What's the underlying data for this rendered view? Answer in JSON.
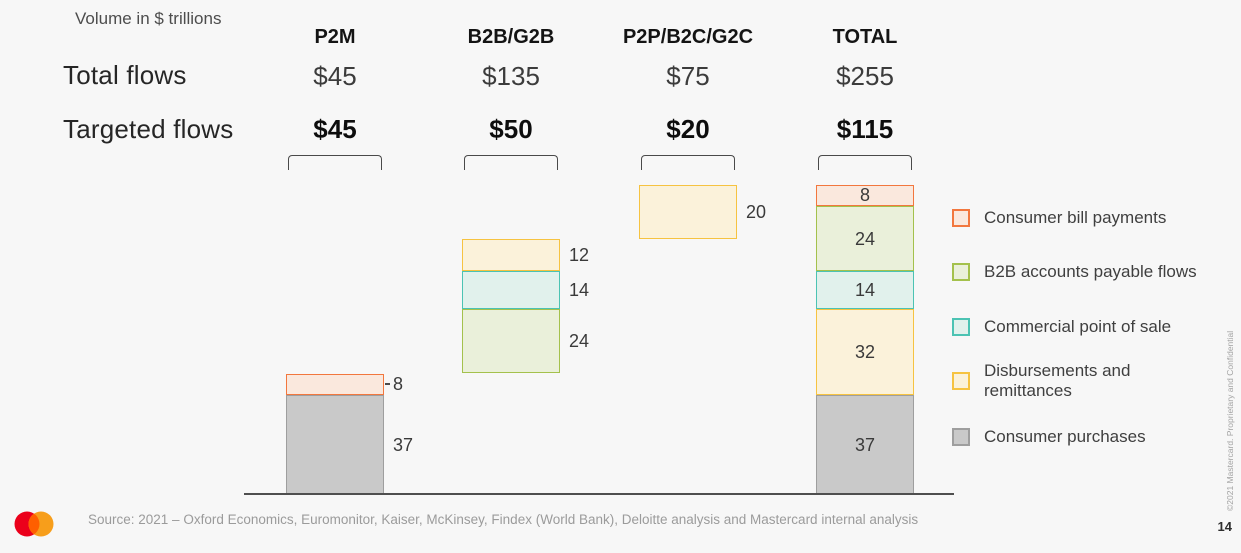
{
  "header": {
    "units_label": "Volume in $ trillions",
    "row_label_total": "Total flows",
    "row_label_targeted": "Targeted flows"
  },
  "chart_data": {
    "type": "bar",
    "stacked": true,
    "layout_hint": "cumulative floating stacked bars, baseline axis, no gridlines, legend right",
    "unit": "$ trillions",
    "ylim": [
      0,
      115
    ],
    "categories": [
      "P2M",
      "B2B/G2B",
      "P2P/B2C/G2C",
      "TOTAL"
    ],
    "total_flows": [
      "$45",
      "$135",
      "$75",
      "$255"
    ],
    "targeted_flows": [
      "$45",
      "$50",
      "$20",
      "$115"
    ],
    "series_palette": {
      "consumer_bill_payments": {
        "label": "Consumer bill payments",
        "border": "#f2773e",
        "fill": "#fae8dd"
      },
      "b2b_accounts_payable": {
        "label": "B2B accounts payable flows",
        "border": "#a4c14c",
        "fill": "#eaf0da"
      },
      "commercial_pos": {
        "label": "Commercial point of sale",
        "border": "#4cc3b3",
        "fill": "#e1f1ec"
      },
      "disbursements_remittances": {
        "label": "Disbursements and remittances",
        "border": "#f6c341",
        "fill": "#fbf2da"
      },
      "consumer_purchases": {
        "label": "Consumer purchases",
        "border": "#9e9e9e",
        "fill": "#c9c9c9"
      }
    },
    "bars": [
      {
        "category": "P2M",
        "start": 0,
        "label_side": "right",
        "segments": [
          {
            "key": "consumer_purchases",
            "value": 37
          },
          {
            "key": "consumer_bill_payments",
            "value": 8,
            "leader_tick": true
          }
        ]
      },
      {
        "category": "B2B/G2B",
        "start": 45,
        "label_side": "right",
        "segments": [
          {
            "key": "b2b_accounts_payable",
            "value": 24
          },
          {
            "key": "commercial_pos",
            "value": 14
          },
          {
            "key": "disbursements_remittances",
            "value": 12
          }
        ]
      },
      {
        "category": "P2P/B2C/G2C",
        "start": 95,
        "label_side": "right",
        "segments": [
          {
            "key": "disbursements_remittances",
            "value": 20
          }
        ]
      },
      {
        "category": "TOTAL",
        "start": 0,
        "label_side": "inside",
        "segments": [
          {
            "key": "consumer_purchases",
            "value": 37
          },
          {
            "key": "disbursements_remittances",
            "value": 32
          },
          {
            "key": "commercial_pos",
            "value": 14
          },
          {
            "key": "b2b_accounts_payable",
            "value": 24
          },
          {
            "key": "consumer_bill_payments",
            "value": 8
          }
        ]
      }
    ]
  },
  "legend": {
    "items": [
      {
        "key": "consumer_bill_payments",
        "label": "Consumer bill payments"
      },
      {
        "key": "b2b_accounts_payable",
        "label": "B2B accounts payable flows"
      },
      {
        "key": "commercial_pos",
        "label": "Commercial point of sale"
      },
      {
        "key": "disbursements_remittances",
        "label": "Disbursements and\nremittances"
      },
      {
        "key": "consumer_purchases",
        "label": "Consumer purchases"
      }
    ]
  },
  "footer": {
    "source": "Source: 2021 – Oxford Economics, Euromonitor, Kaiser, McKinsey, Findex (World Bank), Deloitte analysis and Mastercard internal analysis",
    "page_number": "14",
    "copyright": "©2021 Mastercard. Proprietary and Confidential",
    "logo_colors": {
      "left_circle": "#EB001B",
      "right_circle": "#F79E1B",
      "overlap": "#FF5F00"
    }
  }
}
